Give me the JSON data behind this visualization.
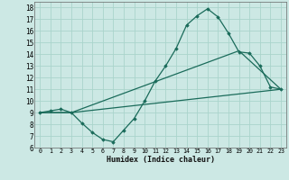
{
  "xlabel": "Humidex (Indice chaleur)",
  "bg_color": "#cce8e4",
  "line_color": "#1a6b5a",
  "grid_color": "#aad4cc",
  "xlim": [
    -0.5,
    23.5
  ],
  "ylim": [
    6,
    18.5
  ],
  "xticks": [
    0,
    1,
    2,
    3,
    4,
    5,
    6,
    7,
    8,
    9,
    10,
    11,
    12,
    13,
    14,
    15,
    16,
    17,
    18,
    19,
    20,
    21,
    22,
    23
  ],
  "yticks": [
    6,
    7,
    8,
    9,
    10,
    11,
    12,
    13,
    14,
    15,
    16,
    17,
    18
  ],
  "line1_x": [
    0,
    1,
    2,
    3,
    4,
    5,
    6,
    7,
    8,
    9,
    10,
    11,
    12,
    13,
    14,
    15,
    16,
    17,
    18,
    19,
    20,
    21,
    22,
    23
  ],
  "line1_y": [
    9.0,
    9.15,
    9.3,
    9.0,
    8.1,
    7.3,
    6.7,
    6.5,
    7.5,
    8.5,
    10.0,
    11.7,
    13.0,
    14.5,
    16.5,
    17.3,
    17.9,
    17.2,
    15.8,
    14.2,
    14.1,
    13.0,
    11.2,
    11.0
  ],
  "line2_x": [
    0,
    3,
    23
  ],
  "line2_y": [
    9.0,
    9.0,
    11.0
  ],
  "line3_x": [
    0,
    3,
    19,
    23
  ],
  "line3_y": [
    9.0,
    9.0,
    14.3,
    11.0
  ]
}
